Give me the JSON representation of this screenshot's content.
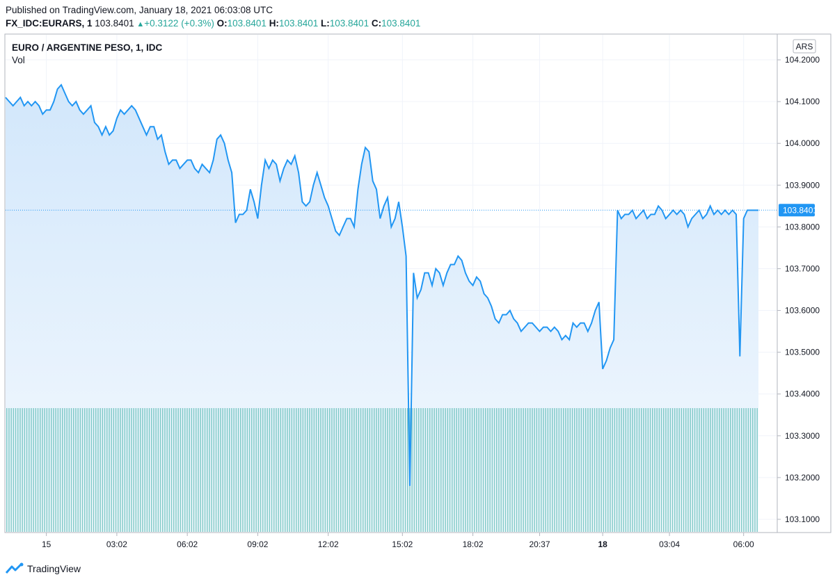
{
  "header": {
    "published": "Published on TradingView.com, January 18, 2021 06:03:08 UTC",
    "symbol": "FX_IDC:EURARS, 1",
    "last": "103.8401",
    "change": "+0.3122 (+0.3%)",
    "open_label": "O:",
    "open": "103.8401",
    "high_label": "H:",
    "high": "103.8401",
    "low_label": "L:",
    "low": "103.8401",
    "close_label": "C:",
    "close": "103.8401"
  },
  "legend": {
    "title": "EURO / ARGENTINE PESO, 1, IDC",
    "vol_label": "Vol"
  },
  "currency_badge": "ARS",
  "last_price_label": "103.8401",
  "brand": {
    "name": "TradingView"
  },
  "colors": {
    "line": "#2196f3",
    "area_top": "#d6eafc",
    "area_bottom": "#f4f9fe",
    "volume": "#26a69a",
    "grid": "#f0f3fa"
  },
  "chart_data": {
    "type": "area",
    "title": "EURO / ARGENTINE PESO, 1, IDC",
    "ylim": [
      103.07,
      104.26
    ],
    "y_ticks": [
      "104.2000",
      "104.1000",
      "104.0000",
      "103.9000",
      "103.8000",
      "103.7000",
      "103.6000",
      "103.5000",
      "103.4000",
      "103.3000",
      "103.2000",
      "103.1000"
    ],
    "x_tick_labels": [
      {
        "label": "15",
        "bold": false,
        "i": 11
      },
      {
        "label": "03:02",
        "bold": false,
        "i": 30
      },
      {
        "label": "06:02",
        "bold": false,
        "i": 49
      },
      {
        "label": "09:02",
        "bold": false,
        "i": 68
      },
      {
        "label": "12:02",
        "bold": false,
        "i": 87
      },
      {
        "label": "15:02",
        "bold": false,
        "i": 107
      },
      {
        "label": "18:02",
        "bold": false,
        "i": 126
      },
      {
        "label": "20:37",
        "bold": false,
        "i": 144
      },
      {
        "label": "18",
        "bold": true,
        "i": 161
      },
      {
        "label": "03:04",
        "bold": false,
        "i": 179
      },
      {
        "label": "06:00",
        "bold": false,
        "i": 199
      }
    ],
    "last_value": 103.8401,
    "series": [
      {
        "values": [
          104.11,
          104.1,
          104.09,
          104.1,
          104.11,
          104.09,
          104.1,
          104.09,
          104.1,
          104.09,
          104.07,
          104.08,
          104.08,
          104.1,
          104.13,
          104.14,
          104.12,
          104.1,
          104.09,
          104.1,
          104.08,
          104.07,
          104.08,
          104.09,
          104.05,
          104.04,
          104.02,
          104.04,
          104.02,
          104.03,
          104.06,
          104.08,
          104.07,
          104.08,
          104.09,
          104.08,
          104.06,
          104.04,
          104.02,
          104.04,
          104.04,
          104.01,
          104.02,
          103.98,
          103.95,
          103.96,
          103.96,
          103.94,
          103.95,
          103.96,
          103.96,
          103.94,
          103.93,
          103.95,
          103.94,
          103.93,
          103.96,
          104.01,
          104.02,
          104.0,
          103.96,
          103.93,
          103.81,
          103.83,
          103.83,
          103.84,
          103.89,
          103.86,
          103.82,
          103.9,
          103.96,
          103.94,
          103.96,
          103.95,
          103.91,
          103.94,
          103.96,
          103.95,
          103.97,
          103.93,
          103.86,
          103.85,
          103.86,
          103.9,
          103.93,
          103.9,
          103.87,
          103.85,
          103.82,
          103.79,
          103.78,
          103.8,
          103.82,
          103.82,
          103.8,
          103.89,
          103.95,
          103.99,
          103.98,
          103.91,
          103.89,
          103.82,
          103.85,
          103.87,
          103.8,
          103.82,
          103.86,
          103.8,
          103.73,
          103.18,
          103.69,
          103.63,
          103.65,
          103.69,
          103.69,
          103.66,
          103.7,
          103.69,
          103.66,
          103.69,
          103.71,
          103.71,
          103.73,
          103.72,
          103.69,
          103.67,
          103.66,
          103.68,
          103.67,
          103.64,
          103.63,
          103.61,
          103.58,
          103.57,
          103.59,
          103.59,
          103.6,
          103.58,
          103.57,
          103.55,
          103.56,
          103.57,
          103.57,
          103.56,
          103.55,
          103.56,
          103.56,
          103.55,
          103.56,
          103.55,
          103.53,
          103.54,
          103.53,
          103.57,
          103.56,
          103.57,
          103.57,
          103.55,
          103.57,
          103.6,
          103.62,
          103.46,
          103.48,
          103.51,
          103.53,
          103.84,
          103.82,
          103.83,
          103.83,
          103.84,
          103.82,
          103.83,
          103.84,
          103.82,
          103.83,
          103.83,
          103.85,
          103.84,
          103.82,
          103.83,
          103.84,
          103.83,
          103.84,
          103.83,
          103.8,
          103.82,
          103.83,
          103.84,
          103.82,
          103.83,
          103.85,
          103.83,
          103.84,
          103.83,
          103.84,
          103.83,
          103.84,
          103.83,
          103.49,
          103.82,
          103.84,
          103.84,
          103.84,
          103.84
        ]
      }
    ]
  }
}
